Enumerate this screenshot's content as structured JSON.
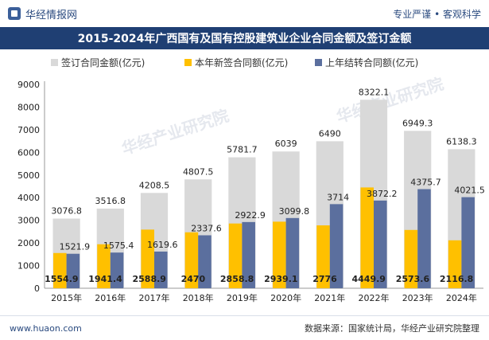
{
  "header": {
    "brand_name": "华经情报网",
    "slogan": "专业严谨 • 客观科学"
  },
  "footer": {
    "url": "www.huaon.com",
    "source": "数据来源：国家统计局，华经产业研究院整理"
  },
  "watermark": "华经产业研究院",
  "colors": {
    "title_bg": "#1f3f73",
    "total": "#d9d9d9",
    "new": "#ffc000",
    "carry": "#5b6f9e"
  },
  "chart_data": {
    "type": "bar",
    "title": "2015-2024年广西国有及国有控股建筑业企业合同金额及签订金额",
    "categories": [
      "2015年",
      "2016年",
      "2017年",
      "2018年",
      "2019年",
      "2020年",
      "2021年",
      "2022年",
      "2023年",
      "2024年"
    ],
    "series": [
      {
        "name": "签订合同金额(亿元)",
        "values": [
          3076.8,
          3516.8,
          4208.5,
          4807.5,
          5781.7,
          6039,
          6490,
          8322.1,
          6949.3,
          6138.3
        ]
      },
      {
        "name": "本年新签合同额(亿元)",
        "values": [
          1554.9,
          1941.4,
          2588.9,
          2470,
          2858.8,
          2939.1,
          2776,
          4449.9,
          2573.6,
          2116.8
        ]
      },
      {
        "name": "上年结转合同额(亿元)",
        "values": [
          1521.9,
          1575.4,
          1619.6,
          2337.6,
          2922.9,
          3099.8,
          3714,
          3872.2,
          4375.7,
          4021.5
        ]
      }
    ],
    "data_labels": {
      "total": [
        "3076.8",
        "3516.8",
        "4208.5",
        "4807.5",
        "5781.7",
        "6039",
        "6490",
        "8322.1",
        "6949.3",
        "6138.3"
      ],
      "new": [
        "1554.9",
        "1941.4",
        "2588.9",
        "2470",
        "2858.8",
        "2939.1",
        "2776",
        "4449.9",
        "2573.6",
        "2116.8"
      ],
      "carry": [
        "1521.9",
        "1575.4",
        "1619.6",
        "2337.6",
        "2922.9",
        "3099.8",
        "3714",
        "3872.2",
        "4375.7",
        "4021.5"
      ]
    },
    "ylim": [
      0,
      9000
    ],
    "yticks": [
      "0",
      "1000",
      "2000",
      "3000",
      "4000",
      "5000",
      "6000",
      "7000",
      "8000",
      "9000"
    ],
    "legend_position": "top"
  }
}
